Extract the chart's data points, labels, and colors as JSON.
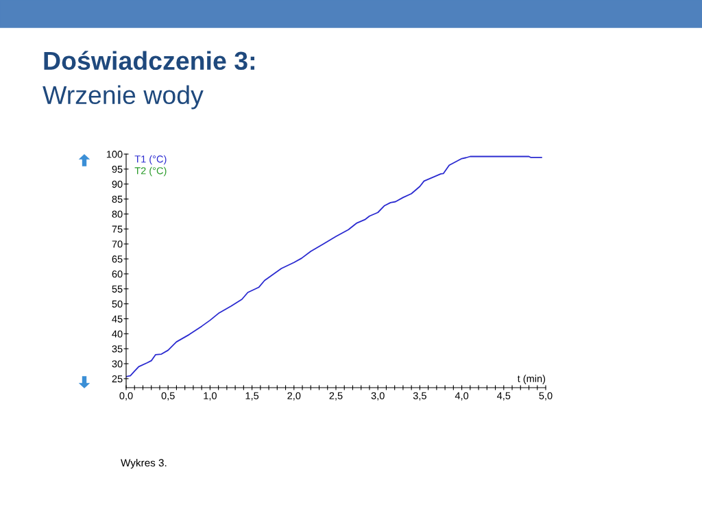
{
  "chart_data": {
    "type": "line",
    "title": "Doświadczenie 3:",
    "subtitle": "Wrzenie wody",
    "xlabel": "t (min)",
    "annotations": [
      "Wykres 3."
    ],
    "xlim": [
      0,
      5
    ],
    "ylim": [
      22,
      100
    ],
    "xticks": [
      {
        "value": 0,
        "label": "0,0"
      },
      {
        "value": 0.1,
        "label": null
      },
      {
        "value": 0.2,
        "label": null
      },
      {
        "value": 0.3,
        "label": null
      },
      {
        "value": 0.4,
        "label": null
      },
      {
        "value": 0.5,
        "label": "0,5"
      },
      {
        "value": 0.6,
        "label": null
      },
      {
        "value": 0.7,
        "label": null
      },
      {
        "value": 0.8,
        "label": null
      },
      {
        "value": 0.9,
        "label": null
      },
      {
        "value": 1,
        "label": "1,0"
      },
      {
        "value": 1.1,
        "label": null
      },
      {
        "value": 1.2,
        "label": null
      },
      {
        "value": 1.3,
        "label": null
      },
      {
        "value": 1.4,
        "label": null
      },
      {
        "value": 1.5,
        "label": "1,5"
      },
      {
        "value": 1.6,
        "label": null
      },
      {
        "value": 1.7,
        "label": null
      },
      {
        "value": 1.8,
        "label": null
      },
      {
        "value": 1.9,
        "label": null
      },
      {
        "value": 2,
        "label": "2,0"
      },
      {
        "value": 2.1,
        "label": null
      },
      {
        "value": 2.2,
        "label": null
      },
      {
        "value": 2.3,
        "label": null
      },
      {
        "value": 2.4,
        "label": null
      },
      {
        "value": 2.5,
        "label": "2,5"
      },
      {
        "value": 2.6,
        "label": null
      },
      {
        "value": 2.7,
        "label": null
      },
      {
        "value": 2.8,
        "label": null
      },
      {
        "value": 2.9,
        "label": null
      },
      {
        "value": 3,
        "label": "3,0"
      },
      {
        "value": 3.1,
        "label": null
      },
      {
        "value": 3.2,
        "label": null
      },
      {
        "value": 3.3,
        "label": null
      },
      {
        "value": 3.4,
        "label": null
      },
      {
        "value": 3.5,
        "label": "3,5"
      },
      {
        "value": 3.6,
        "label": null
      },
      {
        "value": 3.7,
        "label": null
      },
      {
        "value": 3.8,
        "label": null
      },
      {
        "value": 3.9,
        "label": null
      },
      {
        "value": 4,
        "label": "4,0"
      },
      {
        "value": 4.1,
        "label": null
      },
      {
        "value": 4.2,
        "label": null
      },
      {
        "value": 4.3,
        "label": null
      },
      {
        "value": 4.4,
        "label": null
      },
      {
        "value": 4.5,
        "label": "4,5"
      },
      {
        "value": 4.6,
        "label": null
      },
      {
        "value": 4.7,
        "label": null
      },
      {
        "value": 4.8,
        "label": null
      },
      {
        "value": 4.9,
        "label": null
      },
      {
        "value": 5,
        "label": "5,0"
      }
    ],
    "yticks": [
      25,
      30,
      35,
      40,
      45,
      50,
      55,
      60,
      65,
      70,
      75,
      80,
      85,
      90,
      95,
      100
    ],
    "grid": false,
    "legend": "top left",
    "marker": "none",
    "line_style": "solid",
    "series": [
      {
        "name": "T1 (°C)",
        "color": "#2a2ad0",
        "x": [
          0,
          0.05,
          0.1,
          0.15,
          0.25,
          0.3,
          0.35,
          0.42,
          0.5,
          0.6,
          0.75,
          0.9,
          1.0,
          1.1,
          1.25,
          1.38,
          1.45,
          1.58,
          1.65,
          1.75,
          1.85,
          2.0,
          2.09,
          2.2,
          2.35,
          2.5,
          2.65,
          2.75,
          2.85,
          2.9,
          3.0,
          3.08,
          3.15,
          3.21,
          3.3,
          3.4,
          3.5,
          3.55,
          3.75,
          3.78,
          3.85,
          4.0,
          4.05,
          4.1,
          4.8,
          4.82,
          4.95
        ],
        "values": [
          25.7,
          26,
          27.5,
          29,
          30.3,
          31,
          33,
          33.2,
          34.5,
          37.3,
          39.7,
          42.5,
          44.5,
          46.8,
          49.2,
          51.5,
          53.8,
          55.5,
          57.8,
          59.8,
          61.8,
          63.8,
          65.2,
          67.5,
          70,
          72.5,
          74.8,
          77,
          78.2,
          79.3,
          80.5,
          82.8,
          83.8,
          84.1,
          85.5,
          86.8,
          89.2,
          91,
          93.4,
          93.5,
          96.3,
          98.5,
          98.8,
          99.2,
          99.2,
          98.9,
          98.9
        ]
      },
      {
        "name": "T2 (°C)",
        "color": "#2a9a2a"
      }
    ]
  }
}
